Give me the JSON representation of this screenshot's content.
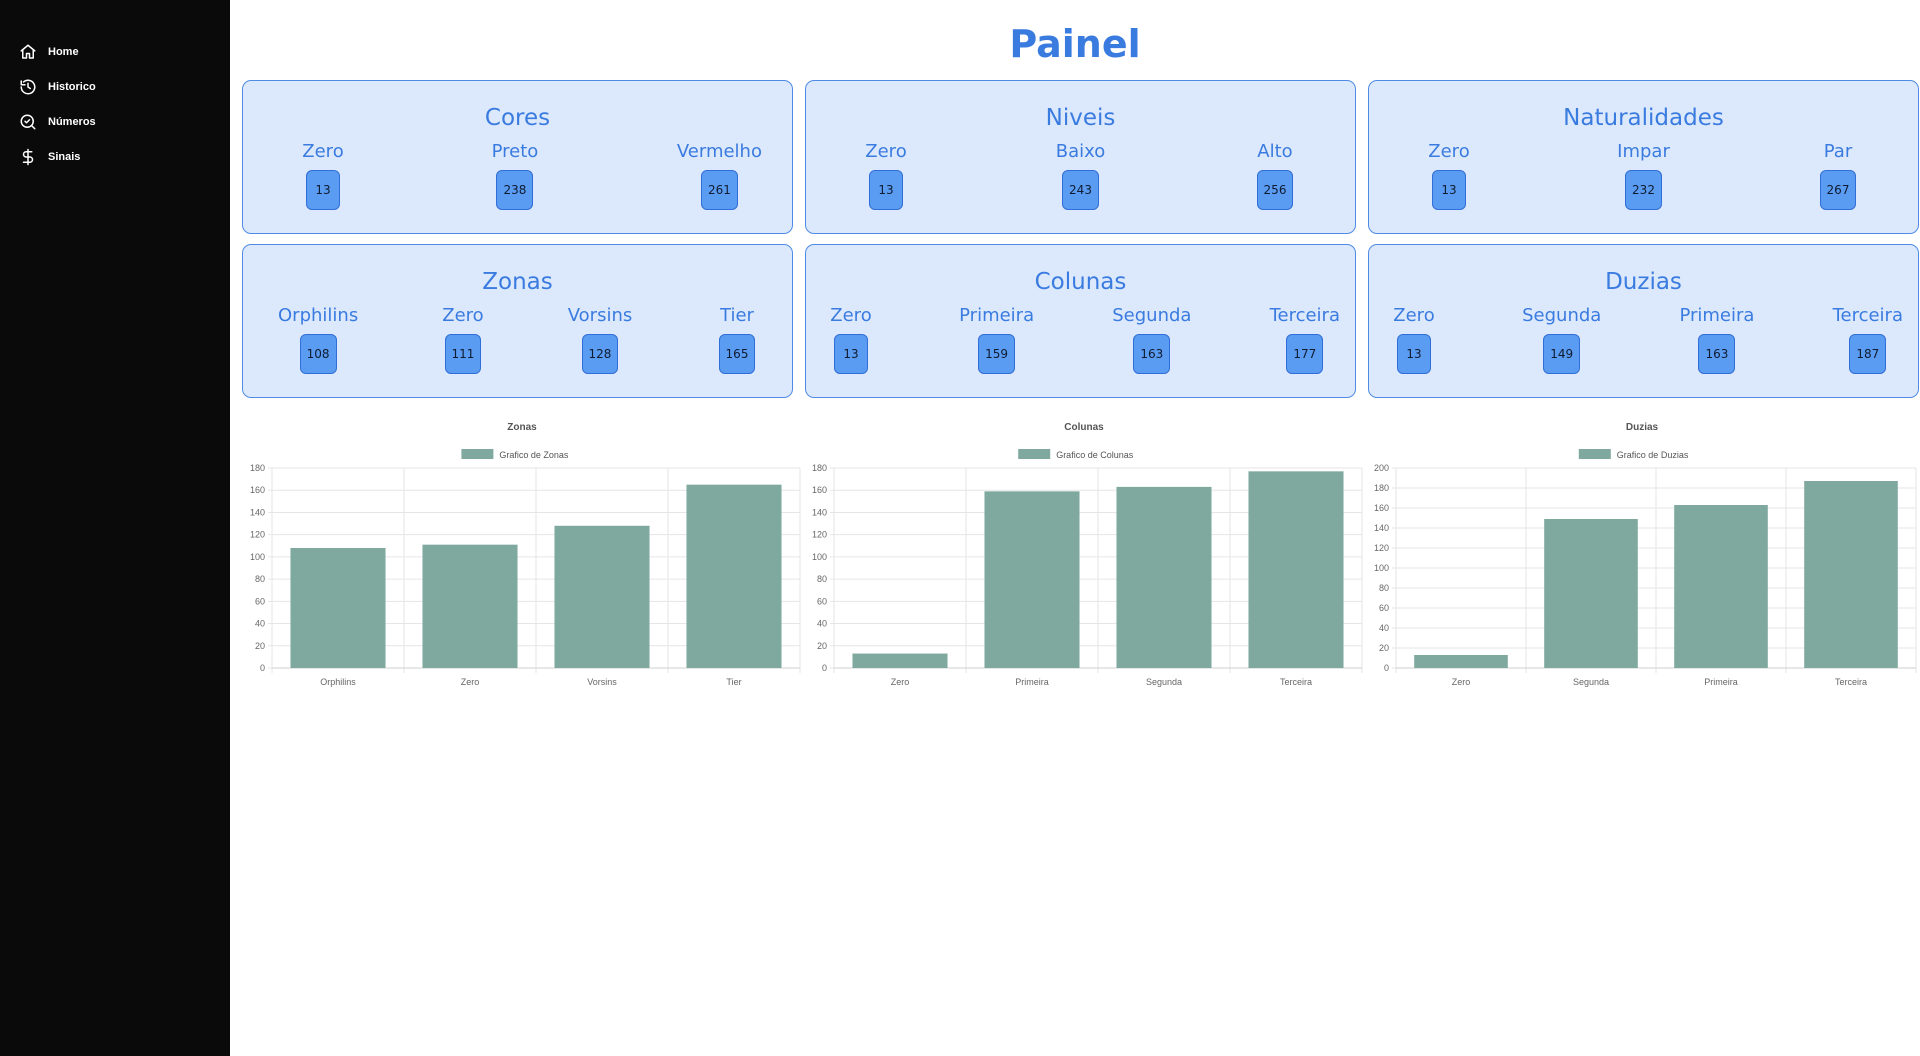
{
  "sidebar": {
    "items": [
      {
        "label": "Home",
        "icon": "home-icon"
      },
      {
        "label": "Historico",
        "icon": "history-icon"
      },
      {
        "label": "Números",
        "icon": "search-check-icon"
      },
      {
        "label": "Sinais",
        "icon": "dollar-icon"
      }
    ]
  },
  "page": {
    "title": "Painel"
  },
  "cards": [
    {
      "title": "Cores",
      "items": [
        {
          "label": "Zero",
          "value": "13"
        },
        {
          "label": "Preto",
          "value": "238"
        },
        {
          "label": "Vermelho",
          "value": "261"
        }
      ]
    },
    {
      "title": "Niveis",
      "items": [
        {
          "label": "Zero",
          "value": "13"
        },
        {
          "label": "Baixo",
          "value": "243"
        },
        {
          "label": "Alto",
          "value": "256"
        }
      ]
    },
    {
      "title": "Naturalidades",
      "items": [
        {
          "label": "Zero",
          "value": "13"
        },
        {
          "label": "Impar",
          "value": "232"
        },
        {
          "label": "Par",
          "value": "267"
        }
      ]
    },
    {
      "title": "Zonas",
      "items": [
        {
          "label": "Orphilins",
          "value": "108"
        },
        {
          "label": "Zero",
          "value": "111"
        },
        {
          "label": "Vorsins",
          "value": "128"
        },
        {
          "label": "Tier",
          "value": "165"
        }
      ]
    },
    {
      "title": "Colunas",
      "items": [
        {
          "label": "Zero",
          "value": "13"
        },
        {
          "label": "Primeira",
          "value": "159"
        },
        {
          "label": "Segunda",
          "value": "163"
        },
        {
          "label": "Terceira",
          "value": "177"
        }
      ]
    },
    {
      "title": "Duzias",
      "items": [
        {
          "label": "Zero",
          "value": "13"
        },
        {
          "label": "Segunda",
          "value": "149"
        },
        {
          "label": "Primeira",
          "value": "163"
        },
        {
          "label": "Terceira",
          "value": "187"
        }
      ]
    }
  ],
  "colors": {
    "accent": "#3a7be0",
    "card_bg": "#dce9fc",
    "badge": "#5b9cf3",
    "bar": "#7fa99f",
    "sidebar": "#0a0a0b"
  },
  "chart_data": [
    {
      "type": "bar",
      "title": "Zonas",
      "categories": [
        "Orphilins",
        "Zero",
        "Vorsins",
        "Tier"
      ],
      "series": [
        {
          "name": "Grafico de Zonas",
          "values": [
            108,
            111,
            128,
            165
          ]
        }
      ],
      "ylim": [
        0,
        180
      ],
      "yticks": [
        0,
        20,
        40,
        60,
        80,
        100,
        120,
        140,
        160,
        180
      ],
      "grid": true,
      "legend": "top-center"
    },
    {
      "type": "bar",
      "title": "Colunas",
      "categories": [
        "Zero",
        "Primeira",
        "Segunda",
        "Terceira"
      ],
      "series": [
        {
          "name": "Grafico de Colunas",
          "values": [
            13,
            159,
            163,
            177
          ]
        }
      ],
      "ylim": [
        0,
        180
      ],
      "yticks": [
        0,
        20,
        40,
        60,
        80,
        100,
        120,
        140,
        160,
        180
      ],
      "grid": true,
      "legend": "top-center"
    },
    {
      "type": "bar",
      "title": "Duzias",
      "categories": [
        "Zero",
        "Segunda",
        "Primeira",
        "Terceira"
      ],
      "series": [
        {
          "name": "Grafico de Duzias",
          "values": [
            13,
            149,
            163,
            187
          ]
        }
      ],
      "ylim": [
        0,
        200
      ],
      "yticks": [
        0,
        20,
        40,
        60,
        80,
        100,
        120,
        140,
        160,
        180,
        200
      ],
      "grid": true,
      "legend": "top-center"
    }
  ]
}
